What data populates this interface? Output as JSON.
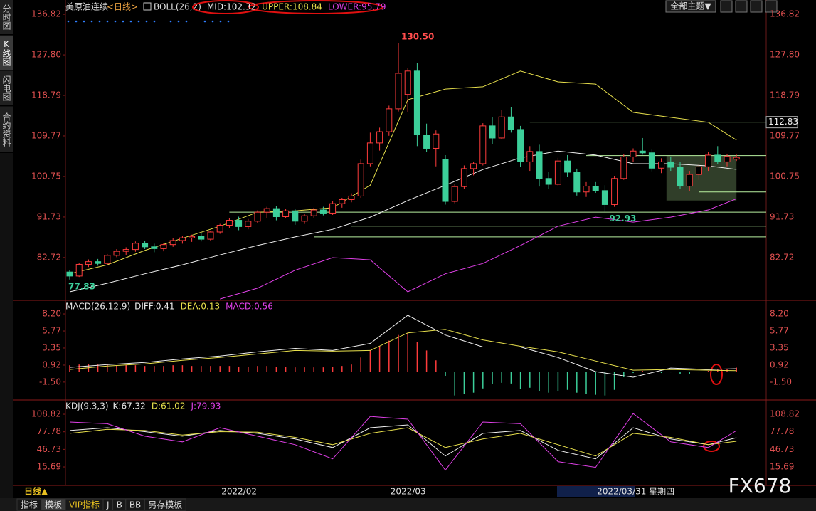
{
  "header": {
    "title": "美原油连续",
    "period": "<日线>",
    "indicator": "BOLL(26,2)",
    "theme_button": "全部主题▼"
  },
  "sidebar": [
    "分时图",
    "K线图",
    "闪电图",
    "合约资料"
  ],
  "toolbar": {
    "period": "日线▲",
    "tabs": [
      "指标",
      "模板",
      "VIP指标",
      "J",
      "B",
      "BB",
      "另存模板"
    ]
  },
  "watermark": "FX678",
  "chart_data": [
    {
      "type": "candlestick",
      "up_color": "#ff3c3c",
      "down_color": "#3ccf9a",
      "ylim": [
        73.2,
        138.1
      ],
      "yticks": [
        {
          "value": 82.72,
          "label": "82.72"
        },
        {
          "value": 91.73,
          "label": "91.73"
        },
        {
          "value": 100.75,
          "label": "100.75"
        },
        {
          "value": 109.77,
          "label": "109.77"
        },
        {
          "value": 118.79,
          "label": "118.79"
        },
        {
          "value": 127.8,
          "label": "127.80"
        },
        {
          "value": 136.82,
          "label": "136.82"
        }
      ],
      "candles": [
        [
          79.5,
          80.0,
          77.83,
          78.6
        ],
        [
          78.6,
          81.5,
          78.4,
          81.2
        ],
        [
          81.2,
          82.3,
          80.6,
          81.8
        ],
        [
          81.8,
          82.4,
          80.9,
          81.4
        ],
        [
          81.4,
          83.5,
          81.0,
          83.2
        ],
        [
          83.2,
          84.6,
          82.8,
          84.1
        ],
        [
          84.1,
          85.0,
          83.2,
          84.5
        ],
        [
          84.5,
          86.3,
          84.0,
          85.9
        ],
        [
          85.9,
          86.5,
          84.6,
          85.1
        ],
        [
          85.1,
          85.8,
          83.9,
          84.7
        ],
        [
          84.7,
          86.0,
          84.1,
          85.6
        ],
        [
          85.6,
          87.0,
          85.1,
          86.5
        ],
        [
          86.5,
          87.5,
          85.8,
          87.1
        ],
        [
          87.1,
          87.8,
          86.2,
          87.4
        ],
        [
          87.4,
          88.2,
          86.3,
          86.8
        ],
        [
          86.8,
          88.7,
          86.4,
          88.4
        ],
        [
          88.4,
          90.2,
          88.0,
          89.9
        ],
        [
          89.9,
          91.5,
          89.2,
          91.0
        ],
        [
          91.0,
          91.8,
          88.8,
          89.6
        ],
        [
          89.6,
          91.3,
          89.0,
          90.8
        ],
        [
          90.8,
          93.2,
          90.3,
          92.8
        ],
        [
          92.8,
          94.0,
          91.5,
          93.6
        ],
        [
          93.6,
          94.2,
          91.0,
          91.8
        ],
        [
          91.8,
          93.5,
          91.4,
          93.1
        ],
        [
          93.1,
          93.6,
          90.0,
          90.8
        ],
        [
          90.8,
          92.4,
          90.2,
          92.0
        ],
        [
          92.0,
          93.8,
          91.6,
          93.3
        ],
        [
          93.3,
          94.0,
          92.1,
          92.6
        ],
        [
          92.6,
          95.2,
          92.2,
          94.7
        ],
        [
          94.7,
          96.0,
          93.8,
          95.6
        ],
        [
          95.6,
          97.0,
          95.0,
          96.4
        ],
        [
          96.4,
          104.5,
          96.0,
          103.6
        ],
        [
          103.6,
          110.5,
          103.0,
          108.2
        ],
        [
          108.2,
          111.6,
          106.5,
          110.7
        ],
        [
          110.7,
          116.5,
          109.8,
          115.8
        ],
        [
          115.8,
          130.5,
          115.2,
          123.7
        ],
        [
          119.0,
          124.8,
          115.0,
          124.2
        ],
        [
          124.2,
          126.0,
          107.5,
          110.0
        ],
        [
          110.0,
          112.5,
          106.2,
          107.0
        ],
        [
          107.0,
          111.0,
          103.0,
          110.2
        ],
        [
          104.5,
          105.5,
          94.5,
          95.2
        ],
        [
          95.2,
          99.0,
          94.8,
          98.5
        ],
        [
          98.5,
          103.2,
          98.0,
          102.5
        ],
        [
          102.5,
          104.0,
          101.0,
          103.6
        ],
        [
          103.6,
          112.6,
          103.2,
          112.0
        ],
        [
          112.0,
          114.0,
          108.0,
          109.3
        ],
        [
          109.3,
          115.5,
          109.0,
          114.0
        ],
        [
          114.0,
          116.2,
          110.5,
          111.2
        ],
        [
          111.2,
          112.0,
          102.8,
          104.0
        ],
        [
          104.0,
          107.5,
          102.0,
          106.3
        ],
        [
          106.3,
          107.8,
          98.5,
          100.3
        ],
        [
          100.3,
          101.8,
          98.0,
          99.0
        ],
        [
          99.0,
          104.9,
          98.6,
          104.2
        ],
        [
          104.2,
          105.5,
          100.6,
          101.7
        ],
        [
          101.7,
          102.5,
          96.5,
          97.3
        ],
        [
          97.3,
          99.5,
          96.2,
          98.6
        ],
        [
          98.6,
          99.5,
          97.1,
          97.6
        ],
        [
          97.6,
          98.8,
          92.93,
          94.5
        ],
        [
          94.5,
          100.9,
          94.0,
          100.3
        ],
        [
          100.3,
          105.8,
          100.0,
          105.1
        ],
        [
          105.1,
          107.0,
          104.0,
          106.4
        ],
        [
          106.4,
          109.3,
          105.6,
          106.0
        ],
        [
          106.0,
          106.9,
          101.9,
          102.6
        ],
        [
          102.6,
          104.8,
          101.5,
          104.0
        ],
        [
          104.0,
          105.2,
          102.0,
          102.8
        ],
        [
          102.8,
          104.0,
          97.9,
          98.6
        ],
        [
          98.6,
          102.0,
          97.5,
          101.2
        ],
        [
          101.2,
          103.5,
          100.0,
          102.9
        ],
        [
          102.9,
          106.2,
          102.0,
          105.5
        ],
        [
          105.5,
          107.5,
          103.5,
          104.0
        ],
        [
          104.0,
          105.8,
          103.0,
          105.2
        ],
        [
          104.6,
          105.6,
          104.2,
          105.0
        ]
      ],
      "x": [
        0,
        4,
        8,
        12,
        16,
        20,
        24,
        28,
        32,
        36,
        40,
        44,
        48,
        52,
        56,
        60,
        64,
        68,
        71
      ],
      "series": [
        {
          "name": "MID:102.32",
          "color": "#f0f0f0",
          "values": [
            75.1,
            77.0,
            79.1,
            81.1,
            83.3,
            85.4,
            87.3,
            89.0,
            91.7,
            95.4,
            98.8,
            102.3,
            104.9,
            106.4,
            105.5,
            103.6,
            103.6,
            103.1,
            102.32
          ]
        },
        {
          "name": "UPPER:108.84",
          "color": "#e8e04c",
          "values": [
            79.1,
            81.1,
            84.3,
            87.0,
            89.7,
            92.8,
            93.1,
            93.8,
            98.8,
            117.8,
            120.2,
            120.7,
            124.2,
            121.8,
            121.3,
            115.0,
            113.9,
            112.8,
            108.84
          ]
        },
        {
          "name": "LOWER:95.79",
          "color": "#e040e8",
          "values": [
            null,
            null,
            null,
            null,
            73.5,
            75.9,
            79.9,
            82.7,
            82.2,
            75.1,
            79.1,
            81.4,
            85.4,
            89.7,
            91.7,
            90.6,
            91.7,
            93.3,
            95.79
          ]
        }
      ],
      "annotations": [
        {
          "label": "130.50",
          "at": 35,
          "color": "#ff4d4d"
        },
        {
          "label": "92.93",
          "at": 57,
          "color": "#3ccf9a"
        },
        {
          "label": "77.83",
          "at": 0,
          "color": "#3ccf9a"
        }
      ],
      "marked_level": {
        "value": 112.83,
        "from": 49
      },
      "hlines": [
        {
          "value": 105.4,
          "from": 55
        },
        {
          "value": 97.3,
          "from": 67
        },
        {
          "value": 92.8,
          "from": 17
        },
        {
          "value": 89.7,
          "from": 30
        },
        {
          "value": 87.3,
          "from": 26
        }
      ],
      "zone": {
        "from": 64,
        "to": 71,
        "top": 105.4,
        "bottom": 95.4
      }
    },
    {
      "type": "macd",
      "title": "MACD(26,12,9)",
      "ylim": [
        -3.84,
        9.52
      ],
      "yticks": [
        {
          "value": -1.5,
          "label": "-1.50"
        },
        0.92,
        3.35,
        5.77,
        {
          "value": 8.2,
          "label": "8.20"
        }
      ],
      "x": [
        0,
        4,
        8,
        12,
        16,
        20,
        24,
        28,
        32,
        36,
        40,
        44,
        48,
        52,
        56,
        60,
        64,
        68,
        71
      ],
      "series": [
        {
          "name": "DIFF:0.41",
          "color": "#f0f0f0",
          "values": [
            0.6,
            1.0,
            1.3,
            1.8,
            2.2,
            2.8,
            3.3,
            3.0,
            4.0,
            8.0,
            5.2,
            3.5,
            3.5,
            2.0,
            0.0,
            -0.8,
            0.5,
            0.3,
            0.41
          ]
        },
        {
          "name": "DEA:0.13",
          "color": "#e8e04c",
          "values": [
            0.3,
            0.8,
            1.1,
            1.6,
            2.0,
            2.5,
            3.0,
            2.9,
            3.0,
            5.5,
            6.0,
            4.5,
            3.6,
            2.8,
            1.5,
            0.2,
            0.3,
            0.2,
            0.13
          ]
        },
        {
          "name": "MACD:0.56",
          "color": "#e040e8",
          "up_color": "#ff3c3c",
          "down_color": "#3ccf9a",
          "bars": [
            0.9,
            1.0,
            1.1,
            1.0,
            1.0,
            0.9,
            0.9,
            0.9,
            0.8,
            0.8,
            0.8,
            0.9,
            0.9,
            0.8,
            0.8,
            0.8,
            0.8,
            0.8,
            0.7,
            0.7,
            0.8,
            0.8,
            0.7,
            0.7,
            0.6,
            0.6,
            0.6,
            0.6,
            0.7,
            0.8,
            1.0,
            2.0,
            3.0,
            3.6,
            4.4,
            5.2,
            5.5,
            4.2,
            3.0,
            1.6,
            -0.6,
            -3.4,
            -3.2,
            -3.0,
            -2.4,
            -1.8,
            -1.6,
            -1.7,
            -2.5,
            -2.3,
            -2.8,
            -3.0,
            -2.8,
            -2.6,
            -3.0,
            -3.2,
            -3.3,
            -3.4,
            -2.6,
            -0.8,
            -0.2,
            0.1,
            -0.1,
            -0.2,
            -0.1,
            -0.4,
            -0.3,
            -0.1,
            0.1,
            0.3,
            0.4,
            0.56
          ]
        }
      ]
    },
    {
      "type": "line",
      "title": "KDJ(9,3,3)",
      "ylim": [
        -17,
        129
      ],
      "yticks": [
        15.69,
        46.73,
        77.78,
        108.82
      ],
      "x": [
        0,
        4,
        8,
        12,
        16,
        20,
        24,
        28,
        32,
        36,
        40,
        44,
        48,
        52,
        56,
        60,
        64,
        68,
        71
      ],
      "series": [
        {
          "name": "K:67.32",
          "color": "#f0f0f0",
          "values": [
            80,
            85,
            78,
            70,
            80,
            75,
            65,
            50,
            85,
            90,
            35,
            75,
            80,
            45,
            30,
            85,
            65,
            55,
            67.32
          ]
        },
        {
          "name": "D:61.02",
          "color": "#e8e04c",
          "values": [
            75,
            82,
            80,
            72,
            78,
            77,
            68,
            55,
            75,
            85,
            50,
            65,
            75,
            55,
            35,
            75,
            68,
            55,
            61.02
          ]
        },
        {
          "name": "J:79.93",
          "color": "#e040e8",
          "values": [
            95,
            92,
            70,
            60,
            85,
            70,
            55,
            30,
            105,
            100,
            10,
            95,
            92,
            25,
            15,
            110,
            60,
            50,
            79.93
          ]
        }
      ],
      "xticks": [
        {
          "value": 16,
          "label": "2022/02"
        },
        {
          "value": 34,
          "label": "2022/03"
        },
        {
          "value": 56,
          "label": "2022/03/31 星期四"
        }
      ]
    }
  ]
}
